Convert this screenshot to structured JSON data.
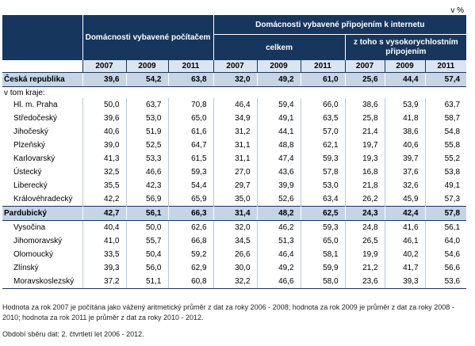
{
  "unit": "v %",
  "header": {
    "group_computer": "Domácnosti vybavené počítačem",
    "group_internet": "Domácnosti vybavené připojením k internetu",
    "sub_total": "celkem",
    "sub_broadband": "z toho s vysokorychlostním připojením",
    "years": [
      "2007",
      "2009",
      "2011",
      "2007",
      "2009",
      "2011",
      "2007",
      "2009",
      "2011"
    ]
  },
  "total_row": {
    "label": "Česká republika",
    "values": [
      "39,6",
      "54,2",
      "63,8",
      "32,0",
      "49,2",
      "61,0",
      "25,6",
      "44,4",
      "57,4"
    ]
  },
  "region_note": "v tom kraje:",
  "regions": [
    {
      "label": "Hl. m. Praha",
      "values": [
        "50,0",
        "63,7",
        "70,8",
        "46,4",
        "59,4",
        "66,0",
        "38,6",
        "53,9",
        "63,7"
      ]
    },
    {
      "label": "Středočeský",
      "values": [
        "39,6",
        "53,0",
        "65,0",
        "34,9",
        "49,1",
        "63,5",
        "25,8",
        "41,8",
        "58,7"
      ]
    },
    {
      "label": "Jihočeský",
      "values": [
        "40,6",
        "51,9",
        "61,6",
        "31,2",
        "44,1",
        "57,0",
        "21,4",
        "38,6",
        "54,8"
      ]
    },
    {
      "label": "Plzeňský",
      "values": [
        "39,0",
        "52,5",
        "64,7",
        "31,1",
        "48,8",
        "62,1",
        "19,7",
        "40,6",
        "55,8"
      ]
    },
    {
      "label": "Karlovarský",
      "values": [
        "41,3",
        "53,3",
        "61,5",
        "31,1",
        "47,4",
        "59,3",
        "19,3",
        "39,7",
        "55,2"
      ]
    },
    {
      "label": "Ústecký",
      "values": [
        "32,5",
        "46,6",
        "59,3",
        "27,0",
        "43,6",
        "57,8",
        "16,8",
        "37,6",
        "53,8"
      ]
    },
    {
      "label": "Liberecký",
      "values": [
        "35,5",
        "42,3",
        "54,4",
        "29,7",
        "39,9",
        "53,0",
        "21,8",
        "32,6",
        "49,1"
      ]
    },
    {
      "label": "Královéhradecký",
      "values": [
        "42,2",
        "56,9",
        "65,9",
        "35,0",
        "52,6",
        "63,4",
        "26,2",
        "45,9",
        "57,3"
      ]
    },
    {
      "label": "Pardubický",
      "highlight": true,
      "values": [
        "42,7",
        "56,1",
        "66,3",
        "31,4",
        "48,2",
        "62,5",
        "24,3",
        "42,4",
        "57,8"
      ]
    },
    {
      "label": "Vysočina",
      "values": [
        "40,4",
        "50,0",
        "62,6",
        "32,0",
        "46,2",
        "59,3",
        "24,8",
        "41,6",
        "56,1"
      ]
    },
    {
      "label": "Jihomoravský",
      "values": [
        "41,0",
        "55,7",
        "66,8",
        "34,5",
        "51,3",
        "65,0",
        "26,5",
        "46,1",
        "64,0"
      ]
    },
    {
      "label": "Olomoucký",
      "values": [
        "33,5",
        "50,4",
        "59,2",
        "26,6",
        "46,4",
        "58,1",
        "19,9",
        "40,2",
        "54,6"
      ]
    },
    {
      "label": "Zlínský",
      "values": [
        "39,3",
        "56,0",
        "62,9",
        "30,0",
        "49,2",
        "59,9",
        "21,2",
        "41,7",
        "56,6"
      ]
    },
    {
      "label": "Moravskoslezský",
      "values": [
        "37,2",
        "51,1",
        "60,8",
        "32,2",
        "46,6",
        "58,0",
        "23,6",
        "39,3",
        "53,6"
      ]
    }
  ],
  "footnote": "Hodnota za rok 2007 je počítána jako vážený aritmetický průměr z dat za roky 2006 - 2008; hodnota za rok 2009 je průměr z dat za roky 2008 - 2010; hodnota za rok 2011 je průměr z dat za roky 2010 - 2012.",
  "period": "Období sběru dat: 2. čtvrtletí let 2006 - 2012."
}
